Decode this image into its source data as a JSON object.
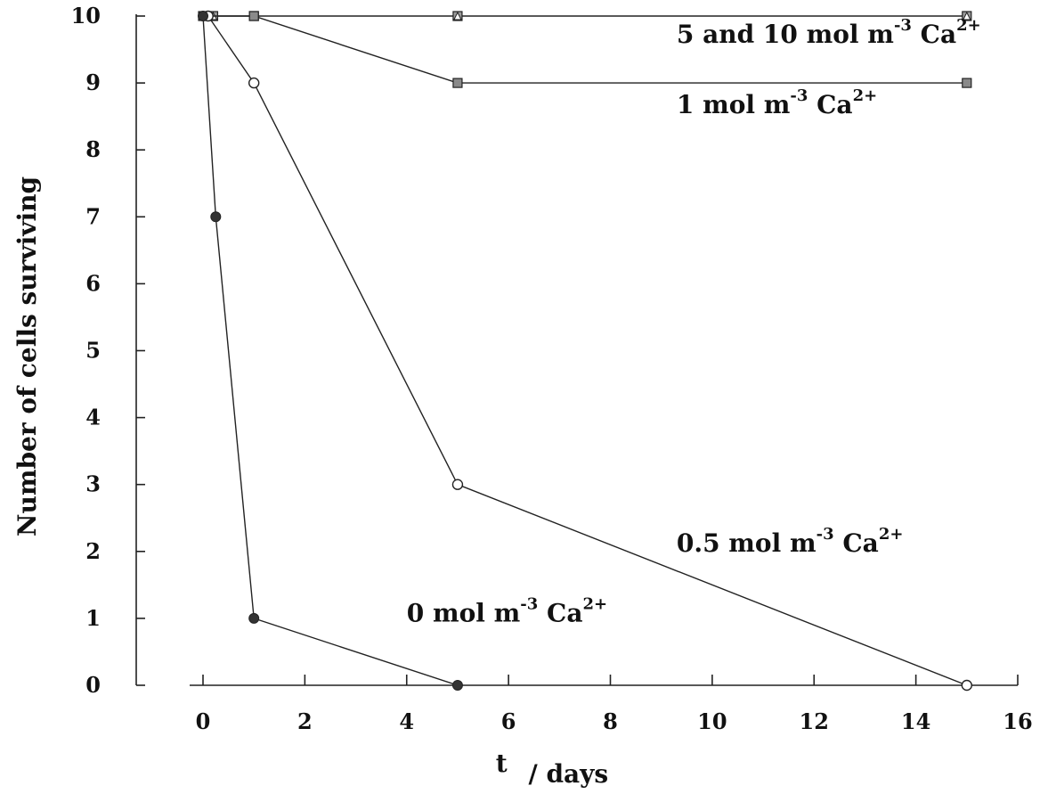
{
  "chart_data": {
    "type": "line",
    "xlabel": {
      "main": "t",
      "rest": "/ days"
    },
    "ylabel": "Number of cells surviving",
    "xlim": [
      0,
      16
    ],
    "ylim": [
      0,
      10
    ],
    "x_ticks": [
      0,
      2,
      4,
      6,
      8,
      10,
      12,
      14,
      16
    ],
    "y_ticks": [
      0,
      1,
      2,
      3,
      4,
      5,
      6,
      7,
      8,
      9,
      10
    ],
    "grid": false,
    "series": [
      {
        "key": "ca10",
        "marker": "triangle-square",
        "fill": "#9a9a9a",
        "x": [
          0.2,
          1,
          5,
          15
        ],
        "y": [
          10,
          10,
          10,
          10
        ]
      },
      {
        "key": "ca1",
        "marker": "square",
        "fill": "#8a8a8a",
        "x": [
          0,
          1,
          5,
          15
        ],
        "y": [
          10,
          10,
          9,
          9
        ]
      },
      {
        "key": "ca05",
        "marker": "open-circle",
        "fill": "#ffffff",
        "x": [
          0.1,
          1,
          5,
          15
        ],
        "y": [
          10,
          9,
          3,
          0
        ]
      },
      {
        "key": "ca0",
        "marker": "filled-circle",
        "fill": "#333333",
        "x": [
          0,
          0.25,
          1,
          5
        ],
        "y": [
          10,
          7,
          1,
          0
        ]
      }
    ],
    "annotations": [
      {
        "key": "ca10",
        "lead": "5  and  10  mol  m",
        "exp1": "-3",
        "mid": " Ca",
        "exp2": "2+",
        "x": 9.3,
        "y": 9.6
      },
      {
        "key": "ca1",
        "lead": "1  mol  m",
        "exp1": "-3",
        "mid": " Ca",
        "exp2": "2+",
        "x": 9.3,
        "y": 8.55
      },
      {
        "key": "ca05",
        "lead": "0.5  mol  m",
        "exp1": "-3",
        "mid": " Ca",
        "exp2": "2+",
        "x": 9.3,
        "y": 2.0
      },
      {
        "key": "ca0",
        "lead": "0  mol  m",
        "exp1": "-3",
        "mid": " Ca",
        "exp2": "2+",
        "x": 4.0,
        "y": 0.95
      }
    ]
  }
}
